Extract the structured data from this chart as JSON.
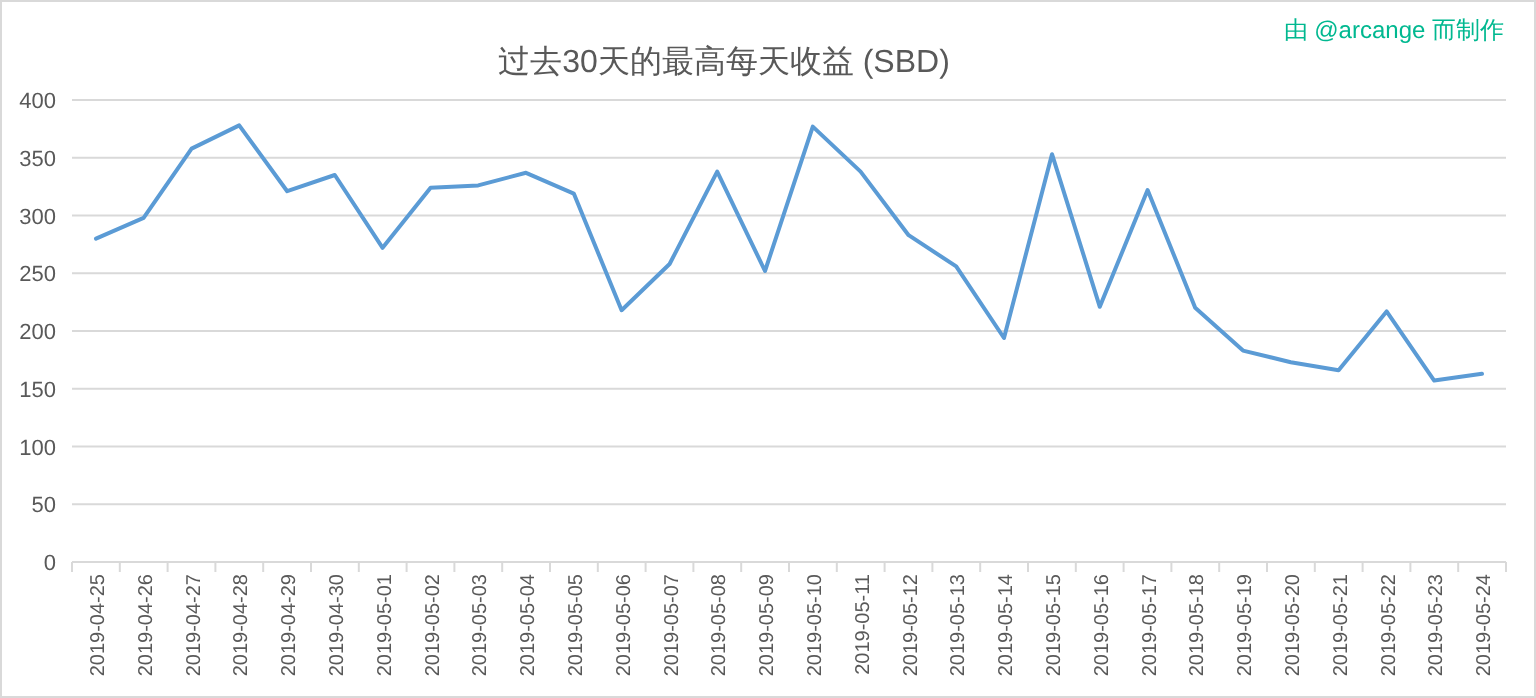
{
  "chart_data": {
    "type": "line",
    "title": "过去30天的最高每天收益 (SBD)",
    "annotations": [
      "由 @arcange 而制作"
    ],
    "categories": [
      "2019-04-25",
      "2019-04-26",
      "2019-04-27",
      "2019-04-28",
      "2019-04-29",
      "2019-04-30",
      "2019-05-01",
      "2019-05-02",
      "2019-05-03",
      "2019-05-04",
      "2019-05-05",
      "2019-05-06",
      "2019-05-07",
      "2019-05-08",
      "2019-05-09",
      "2019-05-10",
      "2019-05-11",
      "2019-05-12",
      "2019-05-13",
      "2019-05-14",
      "2019-05-15",
      "2019-05-16",
      "2019-05-17",
      "2019-05-18",
      "2019-05-19",
      "2019-05-20",
      "2019-05-21",
      "2019-05-22",
      "2019-05-23",
      "2019-05-24"
    ],
    "series": [
      {
        "color": "#5b9bd5",
        "values": [
          280,
          298,
          358,
          378,
          321,
          335,
          272,
          324,
          326,
          337,
          319,
          218,
          258,
          338,
          252,
          377,
          338,
          283,
          256,
          194,
          353,
          221,
          322,
          220,
          183,
          173,
          166,
          217,
          157,
          163
        ]
      }
    ],
    "ylim": [
      0,
      400
    ],
    "yticks": [
      0,
      50,
      100,
      150,
      200,
      250,
      300,
      350,
      400
    ],
    "grid": "y",
    "marker": "none",
    "line_style": "solid"
  }
}
